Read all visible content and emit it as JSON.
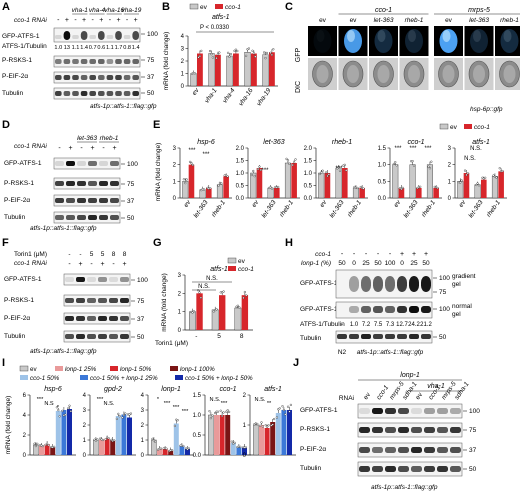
{
  "colors": {
    "ev": "#c9c9c9",
    "cco1": "#d7262b",
    "lonp25": "#e99a9a",
    "lonp50": "#d7262b",
    "lonp100": "#7a1515",
    "cco50": "#9ec3e8",
    "cco_lonp25": "#3b78d8",
    "cco_lonp50": "#1329a8"
  },
  "panelA": {
    "letter": "A",
    "rnai": "cco-1 RNAi",
    "cols": [
      "ev",
      "vha-1",
      "vha-4",
      "vha-16",
      "vha-19"
    ],
    "signs": [
      "-",
      "+",
      "-",
      "+",
      "-",
      "+",
      "-",
      "+",
      "-",
      "+"
    ],
    "rows": [
      "GFP-ATFS-1",
      "ATFS-1/Tubulin",
      "P-RSKS-1",
      "P-EIF-2α",
      "Tubulin"
    ],
    "ratios": [
      "1.0",
      "13",
      "1.1",
      "1.4",
      "0.7",
      "0.6",
      "1.1",
      "1.7",
      "0.8",
      "1.4"
    ],
    "mw": [
      "100",
      "75",
      "37",
      "50"
    ],
    "footer": "atfs-1p::atfs-1::flag::gfp"
  },
  "panelB": {
    "letter": "B",
    "legend": [
      "ev",
      "cco-1"
    ],
    "title": "atfs-1",
    "pval": "P < 0.0330",
    "ylabel": "mRNA (fold change)",
    "yticks": [
      "0",
      "1",
      "2",
      "3",
      "4"
    ],
    "cats": [
      "ev",
      "vha-1",
      "vha-4",
      "vha-16",
      "vha-19"
    ],
    "chart_data": {
      "type": "bar",
      "categories": [
        "ev",
        "vha-1",
        "vha-4",
        "vha-16",
        "vha-19"
      ],
      "series": [
        {
          "name": "ev",
          "values": [
            1.0,
            2.6,
            2.4,
            2.7,
            2.5
          ]
        },
        {
          "name": "cco-1",
          "values": [
            2.6,
            2.5,
            2.6,
            2.6,
            2.7
          ]
        }
      ],
      "ylim": [
        0,
        4
      ]
    }
  },
  "panelC": {
    "letter": "C",
    "groups": [
      "cco-1",
      "mrps-5"
    ],
    "labels": [
      "ev",
      "ev",
      "let-363",
      "rheb-1",
      "ev",
      "let-363",
      "rheb-1"
    ],
    "rows": [
      "GFP",
      "DIC"
    ],
    "footer": "hsp-6p::gfp"
  },
  "panelD": {
    "letter": "D",
    "rnai": "cco-1 RNAi",
    "cols": [
      "ev",
      "let-363",
      "rheb-1"
    ],
    "signs": [
      "-",
      "+",
      "-",
      "+",
      "-",
      "+"
    ],
    "rows": [
      "GFP-ATFS-1",
      "P-RSKS-1",
      "P-EIF-2α",
      "Tubulin"
    ],
    "mw": [
      "100",
      "75",
      "37",
      "50"
    ],
    "footer": "atfs-1p::atfs-1::flag::gfp"
  },
  "panelE": {
    "letter": "E",
    "legend": [
      "ev",
      "cco-1"
    ],
    "ylabel": "mRNA (fold change)",
    "stars": "***",
    "ns": "N.S.",
    "cats": [
      "ev",
      "let-363",
      "rheb-1"
    ],
    "charts": [
      {
        "title": "hsp-6",
        "yticks": [
          "0",
          "1",
          "2",
          "3"
        ],
        "ymax": 3,
        "chart_data": {
          "type": "bar",
          "categories": [
            "ev",
            "let-363",
            "rheb-1"
          ],
          "series": [
            {
              "name": "ev",
              "values": [
                1.0,
                0.5,
                0.8
              ]
            },
            {
              "name": "cco-1",
              "values": [
                2.0,
                0.6,
                1.3
              ]
            }
          ],
          "ylim": [
            0,
            3
          ]
        }
      },
      {
        "title": "let-363",
        "yticks": [
          "0.0",
          "0.5",
          "1.0",
          "1.5",
          "2.0"
        ],
        "ymax": 2,
        "chart_data": {
          "type": "bar",
          "categories": [
            "ev",
            "let-363",
            "rheb-1"
          ],
          "series": [
            {
              "name": "ev",
              "values": [
                1.0,
                0.4,
                1.4
              ]
            },
            {
              "name": "cco-1",
              "values": [
                1.2,
                0.4,
                1.4
              ]
            }
          ],
          "ylim": [
            0,
            2
          ]
        }
      },
      {
        "title": "rheb-1",
        "yticks": [
          "0.0",
          "0.5",
          "1.0",
          "1.5",
          "2.0"
        ],
        "ymax": 2,
        "chart_data": {
          "type": "bar",
          "categories": [
            "ev",
            "let-363",
            "rheb-1"
          ],
          "series": [
            {
              "name": "ev",
              "values": [
                1.0,
                1.2,
                0.4
              ]
            },
            {
              "name": "cco-1",
              "values": [
                1.0,
                1.2,
                0.4
              ]
            }
          ],
          "ylim": [
            0,
            2
          ]
        }
      },
      {
        "title": "cco-1",
        "yticks": [
          "0.0",
          "0.5",
          "1.0",
          "1.5"
        ],
        "ymax": 1.5,
        "chart_data": {
          "type": "bar",
          "categories": [
            "ev",
            "let-363",
            "rheb-1"
          ],
          "series": [
            {
              "name": "ev",
              "values": [
                1.0,
                1.0,
                1.0
              ]
            },
            {
              "name": "cco-1",
              "values": [
                0.3,
                0.3,
                0.3
              ]
            }
          ],
          "ylim": [
            0,
            1.5
          ]
        }
      },
      {
        "title": "atfs-1",
        "yticks": [
          "0",
          "1",
          "2",
          "3"
        ],
        "ymax": 3,
        "chart_data": {
          "type": "bar",
          "categories": [
            "ev",
            "let-363",
            "rheb-1"
          ],
          "series": [
            {
              "name": "ev",
              "values": [
                1.0,
                0.8,
                1.3
              ]
            },
            {
              "name": "cco-1",
              "values": [
                1.5,
                1.1,
                1.6
              ]
            }
          ],
          "ylim": [
            0,
            3
          ]
        }
      }
    ]
  },
  "panelF": {
    "letter": "F",
    "torin": "Torin1 (μM)",
    "torinVals": [
      "-",
      "-",
      "5",
      "5",
      "8",
      "8"
    ],
    "rnai": "cco-1 RNAi",
    "signs": [
      "-",
      "+",
      "-",
      "+",
      "-",
      "+"
    ],
    "rows": [
      "GFP-ATFS-1",
      "P-RSKS-1",
      "P-EIF-2α",
      "Tubulin"
    ],
    "mw": [
      "100",
      "75",
      "37",
      "50"
    ],
    "footer": "atfs-1p::atfs-1::flag::gfp"
  },
  "panelG": {
    "letter": "G",
    "title": "atfs-1",
    "legend": [
      "ev",
      "cco-1"
    ],
    "ylabel": "mRNA (fold change)",
    "xlabel": "Torin1 (μM)",
    "cats": [
      "-",
      "5",
      "8"
    ],
    "yticks": [
      "0",
      "1",
      "2",
      "3"
    ],
    "ns": "N.S.",
    "chart_data": {
      "type": "bar",
      "categories": [
        "-",
        "5",
        "8"
      ],
      "series": [
        {
          "name": "ev",
          "values": [
            1.0,
            1.1,
            1.2
          ]
        },
        {
          "name": "cco-1",
          "values": [
            2.0,
            1.9,
            1.9
          ]
        }
      ],
      "ylim": [
        0,
        3
      ]
    }
  },
  "panelH": {
    "letter": "H",
    "cco": "cco-1",
    "lonp": "lonp-1 (%)",
    "ccoSigns": [
      "-",
      "-",
      "-",
      "-",
      "-",
      "+",
      "+",
      "+"
    ],
    "lonpVals": [
      "50",
      "0",
      "25",
      "50",
      "100",
      "0",
      "25",
      "50"
    ],
    "rows": [
      "GFP-ATFS-1",
      "GFP-ATFS-1",
      "ATFS-1/Tubulin",
      "Tubulin"
    ],
    "ratios": [
      "-",
      "1.0",
      "7.2",
      "7.5",
      "7.3",
      "12.7",
      "24.2",
      "21.2"
    ],
    "gels": [
      "gradient gel",
      "normal gel"
    ],
    "mw": [
      "100",
      "75",
      "100",
      "50"
    ],
    "strains": [
      "N2",
      "atfs-1p::atfs-1::flag::gfp"
    ]
  },
  "panelI": {
    "letter": "I",
    "legend": [
      "ev",
      "lonp-1 25%",
      "lonp-1 50%",
      "lonp-1 100%",
      "cco-1 50%",
      "cco-1 50% + lonp-1 25%",
      "cco-1 50% + lonp-1 50%"
    ],
    "ylabel": "mRNA (fold change)",
    "charts": [
      {
        "title": "hsp-6",
        "yticks": [
          "0",
          "2",
          "4",
          "6"
        ],
        "ymax": 6,
        "marks": [
          "***",
          "N.S",
          "*"
        ],
        "values": [
          1.0,
          0.9,
          1.1,
          0.8,
          4.4,
          4.5,
          4.6
        ]
      },
      {
        "title": "gpd-2",
        "yticks": [
          "0",
          "1",
          "2",
          "3",
          "4"
        ],
        "ymax": 4,
        "marks": [
          "***",
          "N.S."
        ],
        "values": [
          1.0,
          1.0,
          1.1,
          1.0,
          2.6,
          2.7,
          2.5
        ]
      },
      {
        "title": "lonp-1",
        "yticks": [
          "0",
          "1",
          "2",
          "3",
          "4"
        ],
        "ymax": 4,
        "marks": [
          "*",
          "***",
          "***",
          "***"
        ],
        "values": [
          1.0,
          0.4,
          0.4,
          0.3,
          2.1,
          0.6,
          0.4
        ]
      },
      {
        "title": "cco-1",
        "yticks": [
          "0.0",
          "0.5",
          "1.0",
          "1.5"
        ],
        "ymax": 1.5,
        "marks": [
          "N.S.",
          "***"
        ],
        "values": [
          1.0,
          1.0,
          1.0,
          1.0,
          0.3,
          0.2,
          0.2
        ]
      },
      {
        "title": "atfs-1",
        "yticks": [
          "0",
          "1",
          "2"
        ],
        "ymax": 2,
        "marks": [
          "N.S.",
          "**"
        ],
        "values": [
          1.0,
          1.0,
          0.9,
          1.1,
          1.4,
          1.5,
          1.5
        ]
      }
    ]
  },
  "panelJ": {
    "letter": "J",
    "top": "lonp-1",
    "sub": "vha-1",
    "rnai": "RNAi",
    "cols": [
      "ev",
      "cco-1",
      "mrps-5",
      "sdha-1",
      "ev",
      "cco-1",
      "mrps-5",
      "sdha-1"
    ],
    "rows": [
      "GFP-ATFS-1",
      "P-RSKS-1",
      "P-EIF-2α",
      "Tubulin"
    ],
    "mw": [
      "100",
      "75",
      "37",
      "50"
    ],
    "footer": "atfs-1p::atfs-1::flag::gfp"
  }
}
